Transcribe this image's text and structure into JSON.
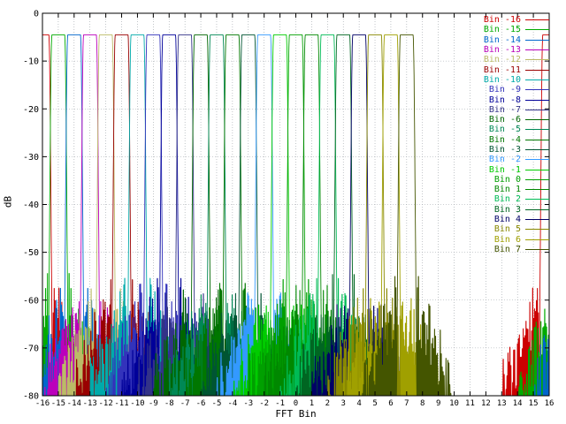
{
  "chart_data": {
    "type": "line",
    "title": "",
    "xlabel": "FFT Bin",
    "ylabel": "dB",
    "xlim": [
      -16,
      16
    ],
    "ylim": [
      -80,
      0
    ],
    "grid": true,
    "legend_position": "top-right",
    "x_ticks": [
      -16,
      -15,
      -14,
      -13,
      -12,
      -11,
      -10,
      -9,
      -8,
      -7,
      -6,
      -5,
      -4,
      -3,
      -2,
      -1,
      0,
      1,
      2,
      3,
      4,
      5,
      6,
      7,
      8,
      9,
      10,
      11,
      12,
      13,
      14,
      15,
      16
    ],
    "y_ticks": [
      0,
      -10,
      -20,
      -30,
      -40,
      -50,
      -60,
      -70,
      -80
    ],
    "model": "FFT filter-bank magnitude responses: flat passband one bin wide centered on each bin, steep skirts to the stopband floor, dense sidelobe spikes within about 3 bins of each center, circular wrap-around at the -16/+16 edges",
    "passband_level_db": -4.5,
    "passband_halfwidth_bins": 0.4,
    "skirt_end_halfwidth_bins": 0.64,
    "stopband_floor_db": -80,
    "sidelobe_peak_db": -54,
    "sidelobe_extent_bins": 3,
    "series": [
      {
        "name": "Bin -16",
        "center": -16,
        "color": "#cc0000"
      },
      {
        "name": "Bin -15",
        "center": -15,
        "color": "#00aa00"
      },
      {
        "name": "Bin -14",
        "center": -14,
        "color": "#0066cc"
      },
      {
        "name": "Bin -13",
        "center": -13,
        "color": "#bb00bb"
      },
      {
        "name": "Bin -12",
        "center": -12,
        "color": "#bbbb66"
      },
      {
        "name": "Bin -11",
        "center": -11,
        "color": "#990000"
      },
      {
        "name": "Bin -10",
        "center": -10,
        "color": "#00aaaa"
      },
      {
        "name": "Bin -9",
        "center": -9,
        "color": "#3333bb"
      },
      {
        "name": "Bin -8",
        "center": -8,
        "color": "#000099"
      },
      {
        "name": "Bin -7",
        "center": -7,
        "color": "#333388"
      },
      {
        "name": "Bin -6",
        "center": -6,
        "color": "#006600"
      },
      {
        "name": "Bin -5",
        "center": -5,
        "color": "#008855"
      },
      {
        "name": "Bin -4",
        "center": -4,
        "color": "#007700"
      },
      {
        "name": "Bin -3",
        "center": -3,
        "color": "#005533"
      },
      {
        "name": "Bin -2",
        "center": -2,
        "color": "#3399ff"
      },
      {
        "name": "Bin -1",
        "center": -1,
        "color": "#00cc00"
      },
      {
        "name": "Bin 0",
        "center": 0,
        "color": "#00a000"
      },
      {
        "name": "Bin 1",
        "center": 1,
        "color": "#008800"
      },
      {
        "name": "Bin 2",
        "center": 2,
        "color": "#00bb55"
      },
      {
        "name": "Bin 3",
        "center": 3,
        "color": "#006622"
      },
      {
        "name": "Bin 4",
        "center": 4,
        "color": "#000066"
      },
      {
        "name": "Bin 5",
        "center": 5,
        "color": "#888800"
      },
      {
        "name": "Bin 6",
        "center": 6,
        "color": "#a0a000"
      },
      {
        "name": "Bin 7",
        "center": 7,
        "color": "#445500"
      }
    ]
  }
}
